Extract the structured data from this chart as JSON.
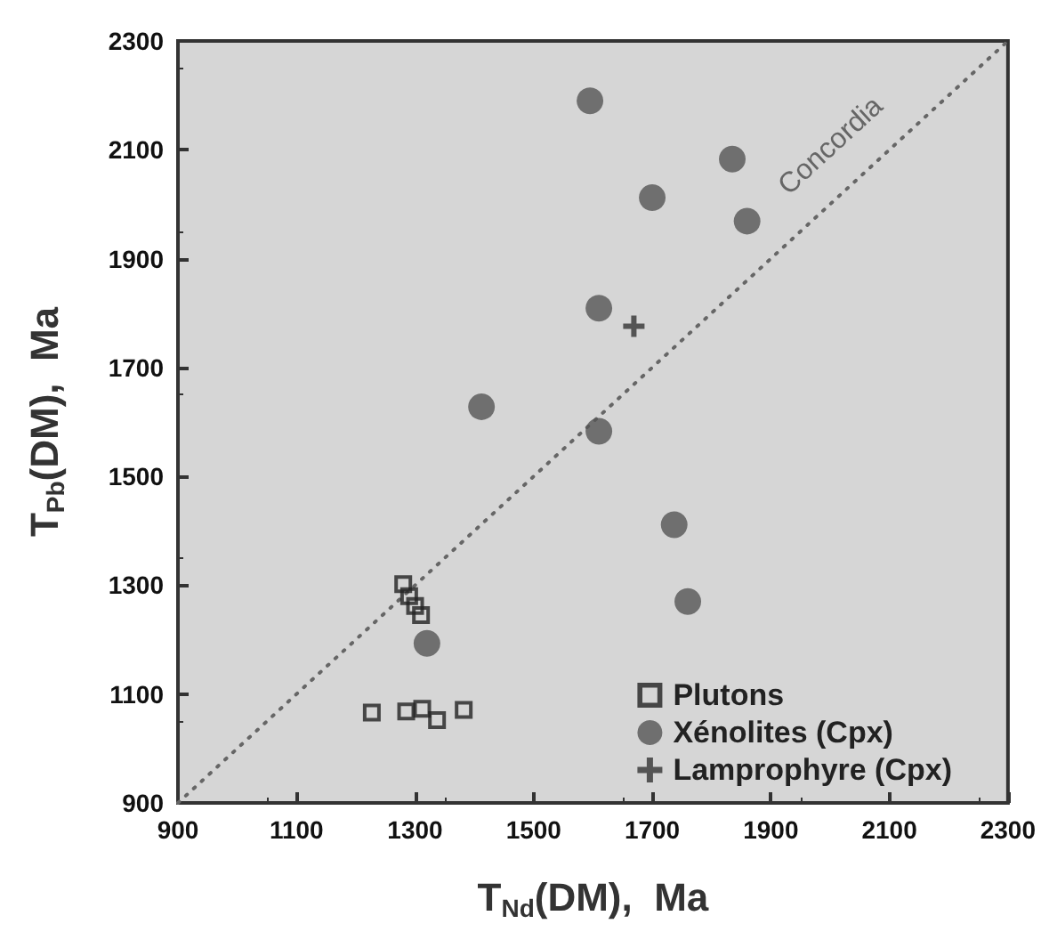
{
  "chart_data": {
    "type": "scatter",
    "xlabel": "T$_{Nd}$(DM),  Ma",
    "ylabel": "T$_{Pb}$(DM),  Ma",
    "xlim": [
      900,
      2300
    ],
    "xticks": [
      900,
      1100,
      1300,
      1500,
      1700,
      1900,
      2100,
      2300
    ],
    "ylim": [
      900,
      2300
    ],
    "yticks": [
      900,
      1100,
      1300,
      1500,
      1700,
      1900,
      2100,
      2300
    ],
    "grid": false,
    "legend": "bottom right",
    "series": [
      {
        "name": "Plutons",
        "color": "#222222",
        "marker": "square",
        "x": [
          1280,
          1290,
          1300,
          1310,
          1227,
          1285,
          1312,
          1337,
          1382
        ],
        "values": [
          1302,
          1280,
          1262,
          1245,
          1066,
          1068,
          1073,
          1052,
          1071
        ]
      },
      {
        "name": "Xénolites (Cpx)",
        "color": "#555555",
        "marker": "circle",
        "x": [
          1595,
          1835,
          1700,
          1860,
          1610,
          1412,
          1610,
          1737,
          1760,
          1320
        ],
        "values": [
          2190,
          2083,
          2012,
          1969,
          1809,
          1628,
          1583,
          1411,
          1270,
          1193
        ]
      },
      {
        "name": "Lamprophyre (Cpx)",
        "color": "#333333",
        "marker": "cross",
        "x": [
          1669
        ],
        "values": [
          1776
        ]
      },
      {
        "name": "Concordia",
        "type": "line",
        "color": "#666666",
        "line_style": "dotted",
        "marker": "none",
        "x": [
          900,
          2300
        ],
        "values": [
          900,
          2300
        ]
      }
    ]
  }
}
